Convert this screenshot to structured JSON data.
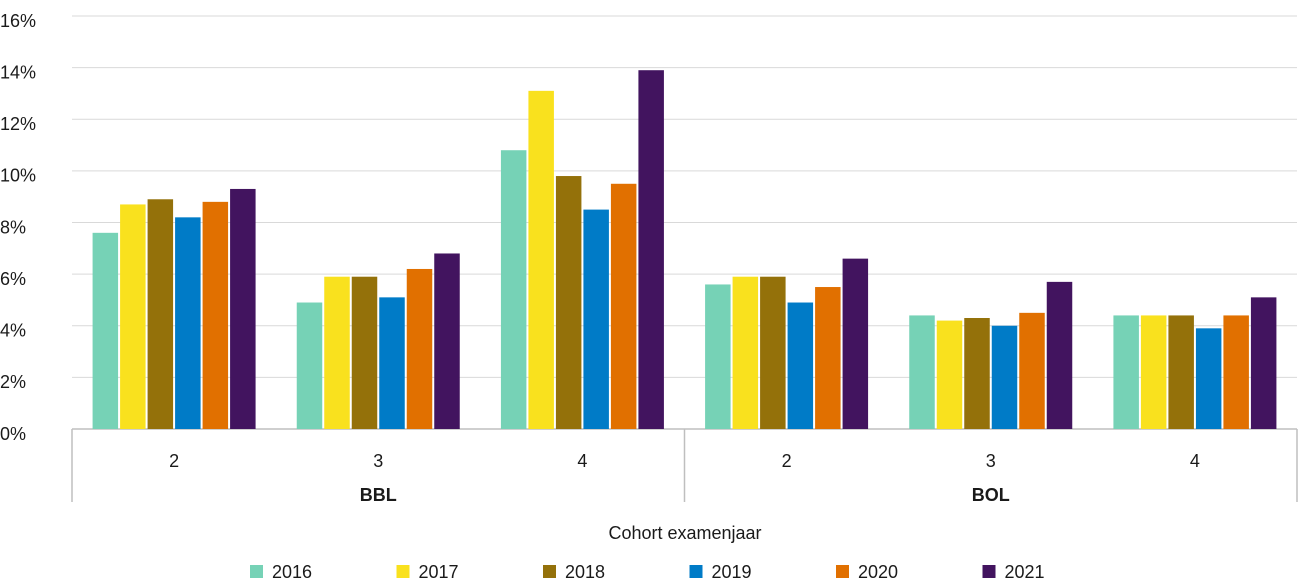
{
  "chart_data": {
    "type": "bar",
    "x_label": "Cohort examenjaar",
    "categories": [
      "2",
      "3",
      "4",
      "2",
      "3",
      "4"
    ],
    "group_labels": [
      "BBL",
      "BOL"
    ],
    "series": [
      {
        "name": "2016",
        "color": "#76d2b6",
        "values": [
          7.6,
          4.9,
          10.8,
          5.6,
          4.4,
          4.4
        ]
      },
      {
        "name": "2017",
        "color": "#f9e11e",
        "values": [
          8.7,
          5.9,
          13.1,
          5.9,
          4.2,
          4.4
        ]
      },
      {
        "name": "2018",
        "color": "#94710a",
        "values": [
          8.9,
          5.9,
          9.8,
          5.9,
          4.3,
          4.4
        ]
      },
      {
        "name": "2019",
        "color": "#007bc7",
        "values": [
          8.2,
          5.1,
          8.5,
          4.9,
          4.0,
          3.9
        ]
      },
      {
        "name": "2020",
        "color": "#e17000",
        "values": [
          8.8,
          6.2,
          9.5,
          5.5,
          4.5,
          4.4
        ]
      },
      {
        "name": "2021",
        "color": "#42145f",
        "values": [
          9.3,
          6.8,
          13.9,
          6.6,
          5.7,
          5.1
        ]
      }
    ],
    "ylim": [
      0,
      16
    ],
    "yticks": [
      {
        "value": 0,
        "label": "0%"
      },
      {
        "value": 2,
        "label": "2%"
      },
      {
        "value": 4,
        "label": "4%"
      },
      {
        "value": 6,
        "label": "6%"
      },
      {
        "value": 8,
        "label": "8%"
      },
      {
        "value": 10,
        "label": "10%"
      },
      {
        "value": 12,
        "label": "12%"
      },
      {
        "value": 14,
        "label": "14%"
      },
      {
        "value": 16,
        "label": "16%"
      }
    ],
    "grid": true,
    "legend": "bottom"
  }
}
